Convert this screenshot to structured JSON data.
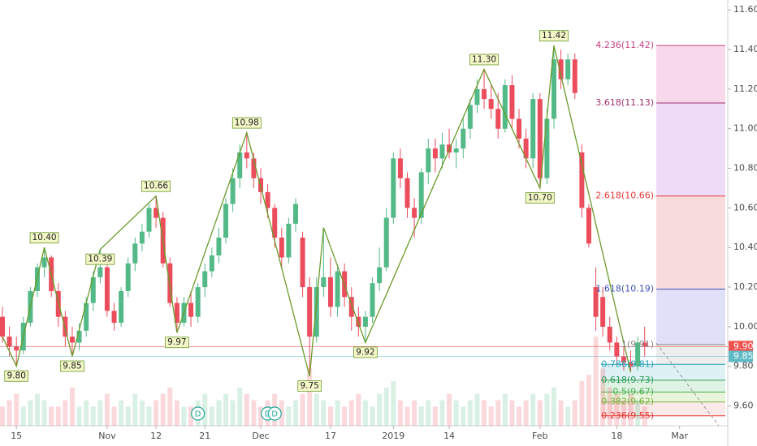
{
  "chart_data": {
    "type": "candlestick",
    "up_color": "#53b987",
    "down_color": "#eb4d5c",
    "line_color": "#6a9a2a",
    "ylim": [
      9.5,
      11.65
    ],
    "yticks": [
      {
        "value": 11.6,
        "label": "11.60"
      },
      {
        "value": 11.4,
        "label": "11.40"
      },
      {
        "value": 11.2,
        "label": "11.20"
      },
      {
        "value": 11,
        "label": "11.00"
      },
      {
        "value": 10.8,
        "label": "10.80"
      },
      {
        "value": 10.6,
        "label": "10.60"
      },
      {
        "value": 10.4,
        "label": "10.40"
      },
      {
        "value": 10.2,
        "label": "10.20"
      },
      {
        "value": 10,
        "label": "10.00"
      },
      {
        "value": 9.8,
        "label": "9.80"
      },
      {
        "value": 9.6,
        "label": "9.60"
      }
    ],
    "xlim": [
      -0.35,
      103.9
    ],
    "xticks": [
      {
        "value": 2,
        "label": "15"
      },
      {
        "value": 15,
        "label": "Nov"
      },
      {
        "value": 22,
        "label": "12"
      },
      {
        "value": 29,
        "label": "21"
      },
      {
        "value": 37,
        "label": "Dec"
      },
      {
        "value": 47,
        "label": "17"
      },
      {
        "value": 56,
        "label": "2019"
      },
      {
        "value": 64,
        "label": "14"
      },
      {
        "value": 77,
        "label": "Feb"
      },
      {
        "value": 88,
        "label": "18"
      },
      {
        "value": 97,
        "label": "Mar"
      }
    ],
    "candles": [
      [
        10.05,
        10.1,
        9.92,
        9.95
      ],
      [
        9.95,
        10.0,
        9.85,
        9.9
      ],
      [
        9.9,
        9.95,
        9.8,
        9.88
      ],
      [
        9.88,
        10.05,
        9.86,
        10.02
      ],
      [
        10.02,
        10.2,
        10.0,
        10.18
      ],
      [
        10.18,
        10.32,
        10.15,
        10.3
      ],
      [
        10.3,
        10.4,
        10.25,
        10.35
      ],
      [
        10.35,
        10.36,
        10.15,
        10.18
      ],
      [
        10.18,
        10.22,
        10.0,
        10.05
      ],
      [
        10.05,
        10.08,
        9.9,
        9.95
      ],
      [
        9.95,
        10.0,
        9.85,
        9.92
      ],
      [
        9.92,
        10.02,
        9.88,
        9.98
      ],
      [
        9.98,
        10.15,
        9.95,
        10.12
      ],
      [
        10.12,
        10.28,
        10.08,
        10.25
      ],
      [
        10.25,
        10.39,
        10.22,
        10.3
      ],
      [
        10.3,
        10.32,
        10.05,
        10.08
      ],
      [
        10.08,
        10.12,
        9.98,
        10.02
      ],
      [
        10.02,
        10.2,
        10.0,
        10.18
      ],
      [
        10.18,
        10.35,
        10.15,
        10.32
      ],
      [
        10.32,
        10.45,
        10.28,
        10.42
      ],
      [
        10.42,
        10.52,
        10.38,
        10.48
      ],
      [
        10.48,
        10.62,
        10.45,
        10.6
      ],
      [
        10.6,
        10.66,
        10.5,
        10.55
      ],
      [
        10.55,
        10.58,
        10.3,
        10.32
      ],
      [
        10.32,
        10.35,
        10.1,
        10.12
      ],
      [
        10.12,
        10.15,
        9.97,
        10.02
      ],
      [
        10.02,
        10.15,
        10.0,
        10.12
      ],
      [
        10.12,
        10.18,
        10.0,
        10.05
      ],
      [
        10.05,
        10.22,
        10.02,
        10.2
      ],
      [
        10.2,
        10.32,
        10.15,
        10.28
      ],
      [
        10.28,
        10.4,
        10.25,
        10.36
      ],
      [
        10.36,
        10.5,
        10.32,
        10.45
      ],
      [
        10.45,
        10.65,
        10.42,
        10.62
      ],
      [
        10.62,
        10.8,
        10.58,
        10.75
      ],
      [
        10.75,
        10.92,
        10.7,
        10.88
      ],
      [
        10.88,
        10.98,
        10.8,
        10.85
      ],
      [
        10.85,
        10.88,
        10.7,
        10.75
      ],
      [
        10.75,
        10.8,
        10.62,
        10.68
      ],
      [
        10.68,
        10.72,
        10.55,
        10.6
      ],
      [
        10.6,
        10.62,
        10.4,
        10.45
      ],
      [
        10.45,
        10.5,
        10.3,
        10.35
      ],
      [
        10.35,
        10.55,
        10.32,
        10.52
      ],
      [
        10.52,
        10.65,
        10.48,
        10.62
      ],
      [
        10.45,
        10.48,
        10.15,
        10.2
      ],
      [
        10.2,
        10.25,
        9.75,
        9.95
      ],
      [
        9.95,
        10.25,
        9.92,
        10.2
      ],
      [
        10.2,
        10.5,
        10.15,
        10.25
      ],
      [
        10.25,
        10.35,
        10.05,
        10.1
      ],
      [
        10.1,
        10.3,
        10.05,
        10.28
      ],
      [
        10.28,
        10.32,
        10.1,
        10.15
      ],
      [
        10.15,
        10.2,
        9.98,
        10.05
      ],
      [
        10.05,
        10.1,
        9.95,
        10.0
      ],
      [
        10.0,
        10.08,
        9.92,
        10.05
      ],
      [
        10.05,
        10.25,
        10.02,
        10.22
      ],
      [
        10.22,
        10.4,
        10.18,
        10.3
      ],
      [
        10.3,
        10.6,
        10.28,
        10.55
      ],
      [
        10.55,
        10.88,
        10.52,
        10.85
      ],
      [
        10.85,
        10.9,
        10.7,
        10.75
      ],
      [
        10.75,
        10.78,
        10.55,
        10.6
      ],
      [
        10.6,
        10.65,
        10.45,
        10.55
      ],
      [
        10.55,
        10.8,
        10.52,
        10.78
      ],
      [
        10.78,
        10.95,
        10.72,
        10.9
      ],
      [
        10.9,
        10.95,
        10.78,
        10.85
      ],
      [
        10.85,
        10.98,
        10.8,
        10.92
      ],
      [
        10.92,
        11.0,
        10.85,
        10.88
      ],
      [
        10.88,
        10.95,
        10.8,
        10.9
      ],
      [
        10.9,
        11.05,
        10.85,
        11.0
      ],
      [
        11.0,
        11.15,
        10.95,
        11.12
      ],
      [
        11.12,
        11.25,
        11.08,
        11.2
      ],
      [
        11.2,
        11.3,
        11.1,
        11.15
      ],
      [
        11.15,
        11.22,
        11.05,
        11.1
      ],
      [
        11.1,
        11.18,
        10.95,
        11.0
      ],
      [
        11.0,
        11.25,
        10.98,
        11.22
      ],
      [
        11.22,
        11.27,
        11.0,
        11.05
      ],
      [
        11.05,
        11.1,
        10.9,
        10.95
      ],
      [
        10.95,
        11.0,
        10.8,
        10.85
      ],
      [
        10.85,
        11.18,
        10.8,
        11.15
      ],
      [
        11.15,
        11.18,
        10.7,
        10.75
      ],
      [
        10.75,
        11.1,
        10.72,
        11.05
      ],
      [
        11.05,
        11.42,
        11.0,
        11.35
      ],
      [
        11.35,
        11.4,
        11.2,
        11.25
      ],
      [
        11.25,
        11.38,
        11.22,
        11.35
      ],
      [
        11.35,
        11.38,
        11.15,
        11.18
      ],
      [
        10.88,
        10.92,
        10.55,
        10.6
      ],
      [
        10.6,
        10.62,
        10.4,
        10.42
      ],
      [
        10.2,
        10.3,
        9.98,
        10.05
      ],
      [
        10.15,
        10.2,
        9.95,
        10.0
      ],
      [
        10.0,
        10.05,
        9.88,
        9.92
      ],
      [
        9.92,
        9.95,
        9.8,
        9.85
      ],
      [
        9.85,
        9.9,
        9.78,
        9.82
      ],
      [
        9.82,
        9.88,
        9.77,
        9.8
      ],
      [
        9.8,
        9.95,
        9.78,
        9.92
      ],
      [
        9.92,
        10.0,
        9.85,
        9.9
      ]
    ],
    "volume": [
      3,
      4,
      5,
      3,
      4,
      5,
      4,
      3,
      3,
      4,
      6,
      3,
      4,
      3,
      4,
      5,
      3,
      4,
      3,
      5,
      4,
      3,
      4,
      5,
      6,
      4,
      3,
      3,
      4,
      5,
      3,
      4,
      5,
      4,
      6,
      5,
      4,
      3,
      4,
      5,
      4,
      3,
      4,
      5,
      9,
      5,
      4,
      3,
      4,
      3,
      4,
      5,
      4,
      3,
      5,
      6,
      7,
      4,
      3,
      4,
      3,
      4,
      3,
      4,
      5,
      4,
      3,
      4,
      5,
      4,
      3,
      4,
      5,
      4,
      3,
      4,
      5,
      4,
      5,
      6,
      4,
      3,
      4,
      7,
      8,
      14,
      9,
      6,
      5,
      4,
      5,
      4,
      3
    ],
    "zigzag": {
      "x": [
        0,
        2,
        6,
        10,
        14,
        22,
        25,
        35,
        44,
        46,
        52,
        69,
        77,
        79,
        90
      ],
      "values": [
        9.95,
        9.8,
        10.4,
        9.85,
        10.39,
        10.66,
        9.97,
        10.98,
        9.75,
        10.5,
        9.92,
        11.3,
        10.7,
        11.42,
        9.77
      ],
      "value_labels": [
        null,
        "9.80",
        "10.40",
        "9.85",
        "10.39",
        "10.66",
        "9.97",
        "10.98",
        "9.75",
        null,
        "9.92",
        "11.30",
        "10.70",
        "11.42",
        null
      ]
    },
    "fib_levels": [
      {
        "label": "4.236(11.42)",
        "value": 11.42,
        "color": "#c2407f",
        "fill": "#f6d0e6"
      },
      {
        "label": "3.618(11.13)",
        "value": 11.13,
        "color": "#a0306d",
        "fill": "#e9d2f5"
      },
      {
        "label": "2.618(10.66)",
        "value": 10.66,
        "color": "#e53935",
        "fill": "#f6d3d3"
      },
      {
        "label": "1.618(10.19)",
        "value": 10.19,
        "color": "#3f51b5",
        "fill": "#d8d9f6"
      },
      {
        "label": "1(9.91)",
        "value": 9.91,
        "color": "#888888",
        "fill": "#e8e8e8"
      },
      {
        "label": "0.786(9.81)",
        "value": 9.81,
        "color": "#2aa3b5",
        "fill": "#d6eef3"
      },
      {
        "label": "0.618(9.73)",
        "value": 9.73,
        "color": "#2e9e5a",
        "fill": "#d6f0dc"
      },
      {
        "label": "0.5(9.67)",
        "value": 9.67,
        "color": "#4caf50",
        "fill": "#e2f3d3"
      },
      {
        "label": "0.382(9.62)",
        "value": 9.62,
        "color": "#7cb342",
        "fill": "#fbe3e3"
      },
      {
        "label": "0.236(9.55)",
        "value": 9.55,
        "color": "#e53935",
        "fill": "#fbe3e3"
      }
    ],
    "price_lines": [
      {
        "value": 9.9,
        "label": "9.90",
        "color": "#ef5350"
      },
      {
        "value": 9.85,
        "label": "9.85",
        "color": "#5fbac5"
      }
    ],
    "dividends": [
      {
        "x": 28,
        "label": "D"
      },
      {
        "x": 38,
        "label": "D"
      },
      {
        "x": 39,
        "label": "D"
      }
    ]
  }
}
